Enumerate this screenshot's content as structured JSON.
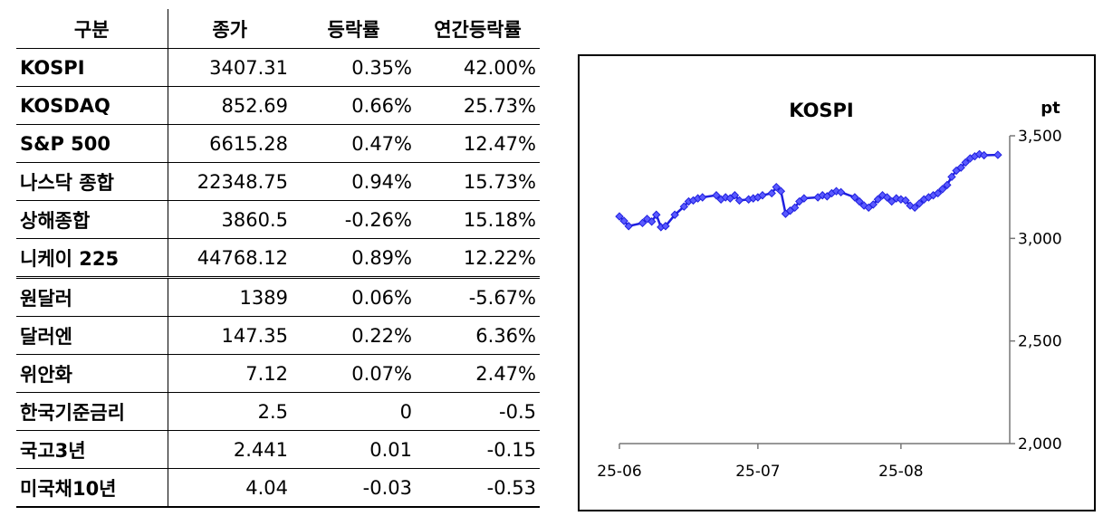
{
  "table": {
    "headers": [
      "구분",
      "종가",
      "등락률",
      "연간등락률"
    ],
    "rows": [
      [
        "KOSPI",
        "3407.31",
        "0.35%",
        "42.00%"
      ],
      [
        "KOSDAQ",
        "852.69",
        "0.66%",
        "25.73%"
      ],
      [
        "S&P 500",
        "6615.28",
        "0.47%",
        "12.47%"
      ],
      [
        "나스닥 종합",
        "22348.75",
        "0.94%",
        "15.73%"
      ],
      [
        "상해종합",
        "3860.5",
        "-0.26%",
        "15.18%"
      ],
      [
        "니케이 225",
        "44768.12",
        "0.89%",
        "12.22%"
      ],
      [
        "원달러",
        "1389",
        "0.06%",
        "-5.67%"
      ],
      [
        "달러엔",
        "147.35",
        "0.22%",
        "6.36%"
      ],
      [
        "위안화",
        "7.12",
        "0.07%",
        "2.47%"
      ],
      [
        "한국기준금리",
        "2.5",
        "0",
        "-0.5"
      ],
      [
        "국고3년",
        "2.441",
        "0.01",
        "-0.15"
      ],
      [
        "미국채10년",
        "4.04",
        "-0.03",
        "-0.53"
      ]
    ]
  },
  "chart_data": {
    "type": "line",
    "title": "KOSPI",
    "ylabel": "pt",
    "ylim": [
      2000,
      3500
    ],
    "yticks": [
      2000,
      2500,
      3000,
      3500
    ],
    "ytick_labels": [
      "2,000",
      "2,500",
      "3,000",
      "3,500"
    ],
    "xticks": [
      0,
      30,
      61
    ],
    "xtick_labels": [
      "25-06",
      "25-07",
      "25-08"
    ],
    "x_range": [
      0,
      83
    ],
    "grid": false,
    "line_color": "#1f1fe0",
    "marker_color": "#5a5aff",
    "x": [
      0,
      1,
      2,
      5,
      6,
      7,
      8,
      9,
      10,
      12,
      14,
      15,
      16,
      17,
      18,
      21,
      22,
      23,
      24,
      25,
      26,
      28,
      29,
      30,
      31,
      33,
      34,
      35,
      36,
      37,
      38,
      39,
      40,
      43,
      44,
      45,
      46,
      47,
      48,
      51,
      52,
      53,
      54,
      55,
      56,
      57,
      58,
      59,
      60,
      61,
      62,
      63,
      64,
      65,
      66,
      67,
      68,
      69,
      70,
      71,
      72,
      73,
      74,
      75,
      76,
      77,
      78,
      79,
      82
    ],
    "y": [
      3107,
      3085,
      3060,
      3075,
      3095,
      3082,
      3115,
      3055,
      3060,
      3115,
      3155,
      3180,
      3185,
      3195,
      3200,
      3210,
      3190,
      3200,
      3195,
      3210,
      3185,
      3190,
      3195,
      3200,
      3210,
      3220,
      3250,
      3230,
      3120,
      3135,
      3150,
      3180,
      3195,
      3200,
      3210,
      3205,
      3220,
      3230,
      3225,
      3200,
      3180,
      3160,
      3150,
      3165,
      3190,
      3210,
      3200,
      3180,
      3195,
      3190,
      3185,
      3160,
      3150,
      3170,
      3190,
      3200,
      3210,
      3220,
      3240,
      3260,
      3300,
      3330,
      3345,
      3370,
      3390,
      3400,
      3410,
      3405,
      3407
    ]
  }
}
